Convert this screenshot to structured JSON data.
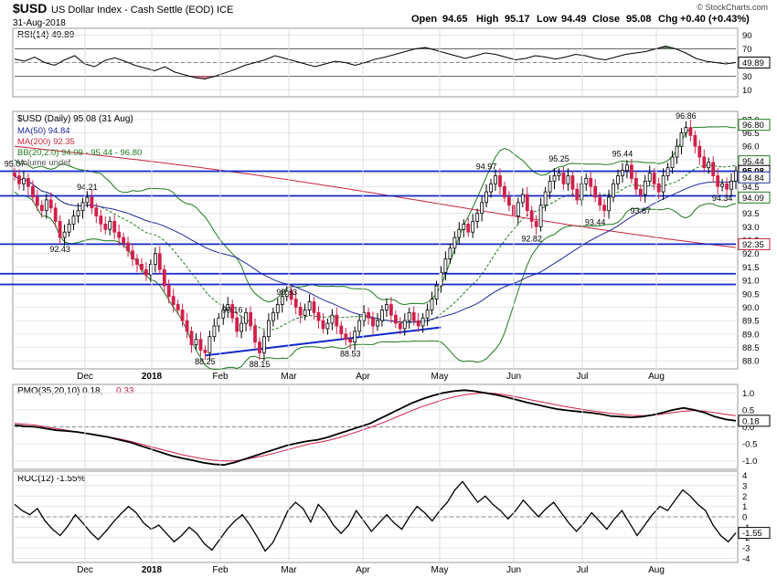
{
  "header": {
    "symbol": "$USD",
    "name": "US Dollar Index - Cash Settle (EOD) ICE",
    "date": "31-Aug-2018",
    "open_label": "Open",
    "open": "94.65",
    "high_label": "High",
    "high": "95.17",
    "low_label": "Low",
    "low": "94.49",
    "close_label": "Close",
    "close": "95.08",
    "chg_label": "Chg",
    "chg": "+0.40 (+0.43%)",
    "brand": "© StockCharts.com"
  },
  "colors": {
    "up": "#ffffff",
    "down": "#d0204a",
    "outline": "#000000",
    "ma50": "#1f2a99",
    "ma200": "#c8243e",
    "bb": "#1e7a1e",
    "trend": "#1028c8",
    "rsi_fill": "#5d7a5d"
  },
  "months": [
    "Dec",
    "2018",
    "Feb",
    "Mar",
    "Apr",
    "May",
    "Jun",
    "Jul",
    "Aug"
  ],
  "chart_data": [
    {
      "type": "line",
      "panel": "RSI",
      "legend": "RSI(14) 49.89",
      "ylim": [
        0,
        100
      ],
      "ticks": [
        "90",
        "70",
        "50",
        "30",
        "10"
      ],
      "last_label": "49.89",
      "series": [
        {
          "name": "RSI(14)",
          "values": [
            55,
            52,
            58,
            50,
            46,
            54,
            60,
            48,
            44,
            53,
            57,
            52,
            46,
            42,
            38,
            44,
            36,
            32,
            28,
            26,
            30,
            35,
            40,
            46,
            50,
            54,
            60,
            56,
            52,
            48,
            44,
            48,
            52,
            50,
            46,
            50,
            55,
            58,
            62,
            66,
            70,
            72,
            68,
            64,
            60,
            56,
            60,
            64,
            62,
            58,
            54,
            56,
            60,
            58,
            55,
            58,
            62,
            60,
            56,
            54,
            58,
            62,
            64,
            66,
            70,
            74,
            70,
            64,
            56,
            52,
            50,
            48,
            50
          ]
        }
      ]
    },
    {
      "type": "candlestick",
      "panel": "price",
      "legend": {
        "title": "$USD (Daily) 95.08 (31 Aug)",
        "ma50": "MA(50) 94.84",
        "ma200": "MA(200) 92.35",
        "bb": "BB(20,2.0) 94.09 - 95.44 - 96.80",
        "vol": "Volume undef"
      },
      "ylim": [
        87.7,
        97.3
      ],
      "ticks": [
        "97.0",
        "96.5",
        "96.0",
        "95.5",
        "95.0",
        "94.5",
        "94.0",
        "93.5",
        "93.0",
        "92.5",
        "92.0",
        "91.5",
        "91.0",
        "90.5",
        "90.0",
        "89.5",
        "89.0",
        "88.5",
        "88.0"
      ],
      "right_tags": [
        {
          "text": "96.80",
          "value": 96.8
        },
        {
          "text": "95.44",
          "value": 95.44
        },
        {
          "text": "95.08",
          "value": 95.08
        },
        {
          "text": "94.84",
          "value": 94.84
        },
        {
          "text": "94.09",
          "value": 94.09
        },
        {
          "text": "92.35",
          "value": 92.35
        }
      ],
      "annotations": [
        {
          "text": "95.07",
          "i": 0,
          "value": 95.07
        },
        {
          "text": "94.21",
          "i": 16,
          "value": 94.21
        },
        {
          "text": "92.43",
          "i": 10,
          "value": 92.43
        },
        {
          "text": "88.25",
          "i": 42,
          "value": 88.25
        },
        {
          "text": "90.16",
          "i": 48,
          "value": 90.16
        },
        {
          "text": "88.15",
          "i": 54,
          "value": 88.15
        },
        {
          "text": "90.83",
          "i": 60,
          "value": 90.83
        },
        {
          "text": "88.53",
          "i": 74,
          "value": 88.53
        },
        {
          "text": "94.97",
          "i": 104,
          "value": 94.97
        },
        {
          "text": "92.82",
          "i": 114,
          "value": 92.82
        },
        {
          "text": "95.25",
          "i": 120,
          "value": 95.25
        },
        {
          "text": "93.44",
          "i": 128,
          "value": 93.44
        },
        {
          "text": "95.44",
          "i": 134,
          "value": 95.44
        },
        {
          "text": "93.87",
          "i": 138,
          "value": 93.87
        },
        {
          "text": "96.86",
          "i": 148,
          "value": 96.86
        },
        {
          "text": "94.34",
          "i": 156,
          "value": 94.34
        }
      ],
      "hlines": [
        95.07,
        94.15,
        92.35,
        91.25,
        90.85
      ],
      "trendline": {
        "from": {
          "i": 42,
          "value": 88.2
        },
        "to": {
          "i": 94,
          "value": 89.25
        }
      },
      "close": [
        94.9,
        94.6,
        94.8,
        94.5,
        94.1,
        93.8,
        93.6,
        94.0,
        93.7,
        93.2,
        92.6,
        92.8,
        93.1,
        93.4,
        93.6,
        93.9,
        94.1,
        93.7,
        93.4,
        93.1,
        92.9,
        93.2,
        92.8,
        92.6,
        92.4,
        92.1,
        91.8,
        91.6,
        91.4,
        91.2,
        91.6,
        92.0,
        91.4,
        90.8,
        90.4,
        90.1,
        89.9,
        89.5,
        89.1,
        88.6,
        88.8,
        88.4,
        88.3,
        88.9,
        89.3,
        89.6,
        89.9,
        90.1,
        89.6,
        89.1,
        89.4,
        89.8,
        89.3,
        88.7,
        88.3,
        88.9,
        89.5,
        89.8,
        90.1,
        90.4,
        90.6,
        90.3,
        90.0,
        89.7,
        89.9,
        90.2,
        89.8,
        89.5,
        89.2,
        89.4,
        89.7,
        89.3,
        89.0,
        88.8,
        88.7,
        89.1,
        89.5,
        89.8,
        89.6,
        89.3,
        89.5,
        89.9,
        90.1,
        89.7,
        89.4,
        89.2,
        89.5,
        89.8,
        89.5,
        89.3,
        89.6,
        89.9,
        90.3,
        90.8,
        91.3,
        91.8,
        92.2,
        92.6,
        92.9,
        93.1,
        92.8,
        93.2,
        93.5,
        93.9,
        94.3,
        94.6,
        94.9,
        94.5,
        94.1,
        93.8,
        93.4,
        93.9,
        94.2,
        93.6,
        93.2,
        93.0,
        93.8,
        94.3,
        94.7,
        94.9,
        95.0,
        94.6,
        94.9,
        94.4,
        94.0,
        94.6,
        94.8,
        94.5,
        94.1,
        93.8,
        93.6,
        94.1,
        94.6,
        94.9,
        95.1,
        95.3,
        94.8,
        94.4,
        94.2,
        94.7,
        95.0,
        94.6,
        94.3,
        94.9,
        95.2,
        95.6,
        96.0,
        96.5,
        96.7,
        96.4,
        96.0,
        95.6,
        95.2,
        95.4,
        94.9,
        94.5,
        94.6,
        94.4,
        94.7,
        95.08
      ]
    },
    {
      "type": "line",
      "panel": "PMO",
      "legend": "PMO(35,20,10) 0.18,",
      "legend_signal": "0.33",
      "ylim": [
        -1.25,
        1.25
      ],
      "ticks": [
        "1.0",
        "0.5",
        "0.0",
        "-0.5",
        "-1.0"
      ],
      "last_label": "0.18",
      "series": [
        {
          "name": "PMO",
          "values": [
            0.05,
            0.02,
            0.0,
            -0.05,
            -0.1,
            -0.12,
            -0.15,
            -0.2,
            -0.25,
            -0.3,
            -0.38,
            -0.45,
            -0.55,
            -0.65,
            -0.75,
            -0.85,
            -0.92,
            -0.98,
            -1.05,
            -1.1,
            -1.12,
            -1.05,
            -0.95,
            -0.85,
            -0.75,
            -0.65,
            -0.55,
            -0.48,
            -0.42,
            -0.38,
            -0.3,
            -0.2,
            -0.1,
            0.0,
            0.1,
            0.25,
            0.4,
            0.55,
            0.7,
            0.82,
            0.92,
            1.0,
            1.05,
            1.08,
            1.05,
            1.0,
            0.95,
            0.88,
            0.8,
            0.72,
            0.65,
            0.58,
            0.52,
            0.48,
            0.45,
            0.42,
            0.38,
            0.32,
            0.3,
            0.28,
            0.3,
            0.35,
            0.42,
            0.5,
            0.56,
            0.5,
            0.42,
            0.3,
            0.22,
            0.18
          ]
        },
        {
          "name": "Signal",
          "values": [
            0.1,
            0.08,
            0.05,
            0.0,
            -0.05,
            -0.1,
            -0.15,
            -0.2,
            -0.25,
            -0.3,
            -0.35,
            -0.42,
            -0.5,
            -0.58,
            -0.66,
            -0.74,
            -0.82,
            -0.88,
            -0.94,
            -0.98,
            -1.0,
            -1.0,
            -0.96,
            -0.9,
            -0.84,
            -0.76,
            -0.68,
            -0.6,
            -0.52,
            -0.46,
            -0.4,
            -0.32,
            -0.22,
            -0.12,
            -0.02,
            0.1,
            0.22,
            0.35,
            0.48,
            0.6,
            0.7,
            0.8,
            0.88,
            0.94,
            0.98,
            1.0,
            0.98,
            0.94,
            0.88,
            0.82,
            0.76,
            0.7,
            0.64,
            0.58,
            0.53,
            0.48,
            0.44,
            0.4,
            0.37,
            0.34,
            0.33,
            0.34,
            0.38,
            0.42,
            0.46,
            0.48,
            0.46,
            0.42,
            0.37,
            0.33
          ]
        }
      ]
    },
    {
      "type": "line",
      "panel": "ROC",
      "legend": "ROC(12) -1.55%",
      "ylim": [
        -4.4,
        4.4
      ],
      "ticks": [
        "4",
        "3",
        "2",
        "1",
        "0",
        "-1",
        "-2",
        "-3",
        "-4"
      ],
      "last_label": "-1.55",
      "series": [
        {
          "name": "ROC(12)",
          "values": [
            1.2,
            0.6,
            0.2,
            0.8,
            -0.4,
            -1.2,
            -1.8,
            -0.9,
            0.2,
            -0.6,
            -1.5,
            -2.2,
            -1.4,
            -0.5,
            0.3,
            1.0,
            0.4,
            -0.6,
            -1.2,
            -0.8,
            -1.6,
            -2.4,
            -1.8,
            -1.0,
            -1.6,
            -2.6,
            -3.2,
            -2.2,
            -1.2,
            -0.4,
            0.2,
            -0.8,
            -2.0,
            -3.3,
            -2.5,
            -1.0,
            0.6,
            1.4,
            0.8,
            -0.5,
            1.2,
            0.4,
            -0.8,
            -1.6,
            -0.8,
            0.6,
            -0.4,
            -1.4,
            -0.6,
            0.2,
            -0.6,
            -1.2,
            0.0,
            1.0,
            0.4,
            -0.4,
            0.6,
            1.4,
            2.6,
            3.4,
            2.4,
            1.4,
            2.0,
            1.2,
            0.6,
            -0.2,
            0.6,
            1.6,
            0.8,
            0.0,
            0.8,
            1.4,
            0.4,
            -0.6,
            -1.4,
            -0.6,
            0.4,
            -0.4,
            -1.2,
            -0.2,
            0.6,
            -0.6,
            -1.8,
            -0.8,
            0.2,
            1.0,
            0.6,
            1.6,
            2.6,
            2.0,
            1.2,
            0.6,
            -0.8,
            -1.8,
            -2.4,
            -1.55
          ]
        }
      ]
    }
  ]
}
